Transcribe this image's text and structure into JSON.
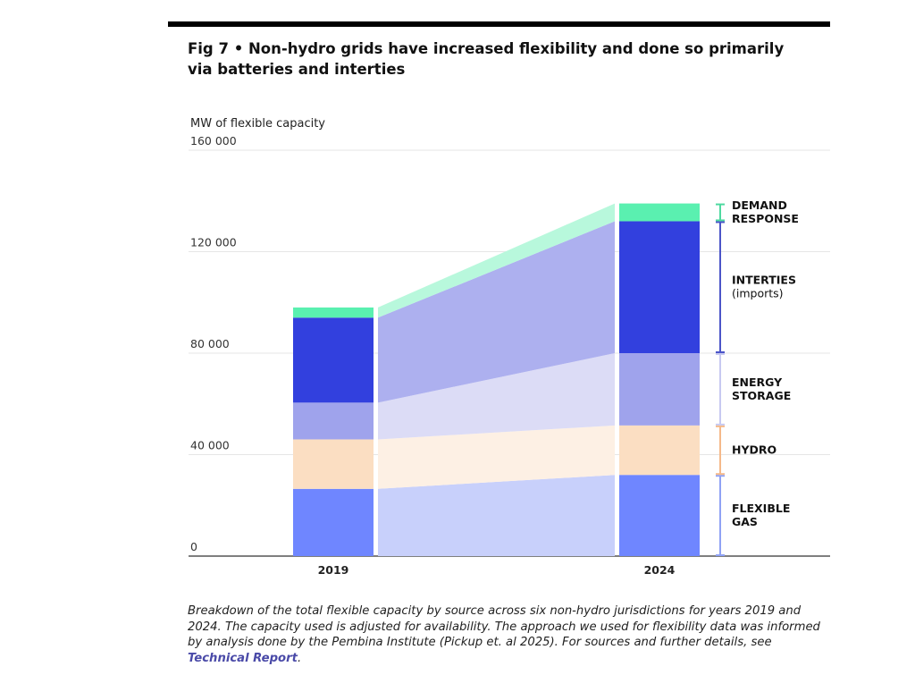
{
  "figure": {
    "title": "Fig 7  •  Non-hydro grids have increased flexibility and done so primarily via batteries and interties",
    "caption": "Breakdown of the total flexible capacity by source across six non-hydro jurisdictions for years 2019 and 2024. The capacity used is adjusted for availability. The approach we used for flexibility data was informed by analysis done by the Pembina Institute (Pickup et. al 2025). For sources and further details, see ",
    "caption_link": "Technical Report",
    "caption_end": "."
  },
  "chart_data": {
    "type": "bar",
    "stacked": true,
    "ylabel": "MW of flexible capacity",
    "ylim": [
      0,
      160000
    ],
    "yticks": [
      0,
      40000,
      80000,
      120000,
      160000
    ],
    "ytick_labels": [
      "0",
      "40 000",
      "80 000",
      "120 000",
      "160 000"
    ],
    "categories": [
      "2019",
      "2024"
    ],
    "grid": true,
    "legend_position": "right",
    "series": [
      {
        "name": "FLEXIBLE GAS",
        "sublabel": "",
        "values": [
          26500,
          32000
        ],
        "color": "#6f86ff",
        "band_color": "#c8d0fb",
        "bracket_color": "#8fa2f5"
      },
      {
        "name": "HYDRO",
        "sublabel": "",
        "values": [
          19500,
          19500
        ],
        "color": "#fbdec2",
        "band_color": "#fdf0e4",
        "bracket_color": "#f5b98a"
      },
      {
        "name": "ENERGY STORAGE",
        "sublabel": "",
        "values": [
          14500,
          28500
        ],
        "color": "#9fa3ec",
        "band_color": "#dcdcf6",
        "bracket_color": "#c7c9f1"
      },
      {
        "name": "INTERTIES",
        "sublabel": "(imports)",
        "values": [
          33500,
          52000
        ],
        "color": "#3240de",
        "band_color": "#adb0ef",
        "bracket_color": "#4b55c8"
      },
      {
        "name": "DEMAND RESPONSE",
        "sublabel": "",
        "values": [
          4000,
          7000
        ],
        "color": "#5af0b0",
        "band_color": "#b8f8dc",
        "bracket_color": "#4fd9a0"
      }
    ]
  }
}
